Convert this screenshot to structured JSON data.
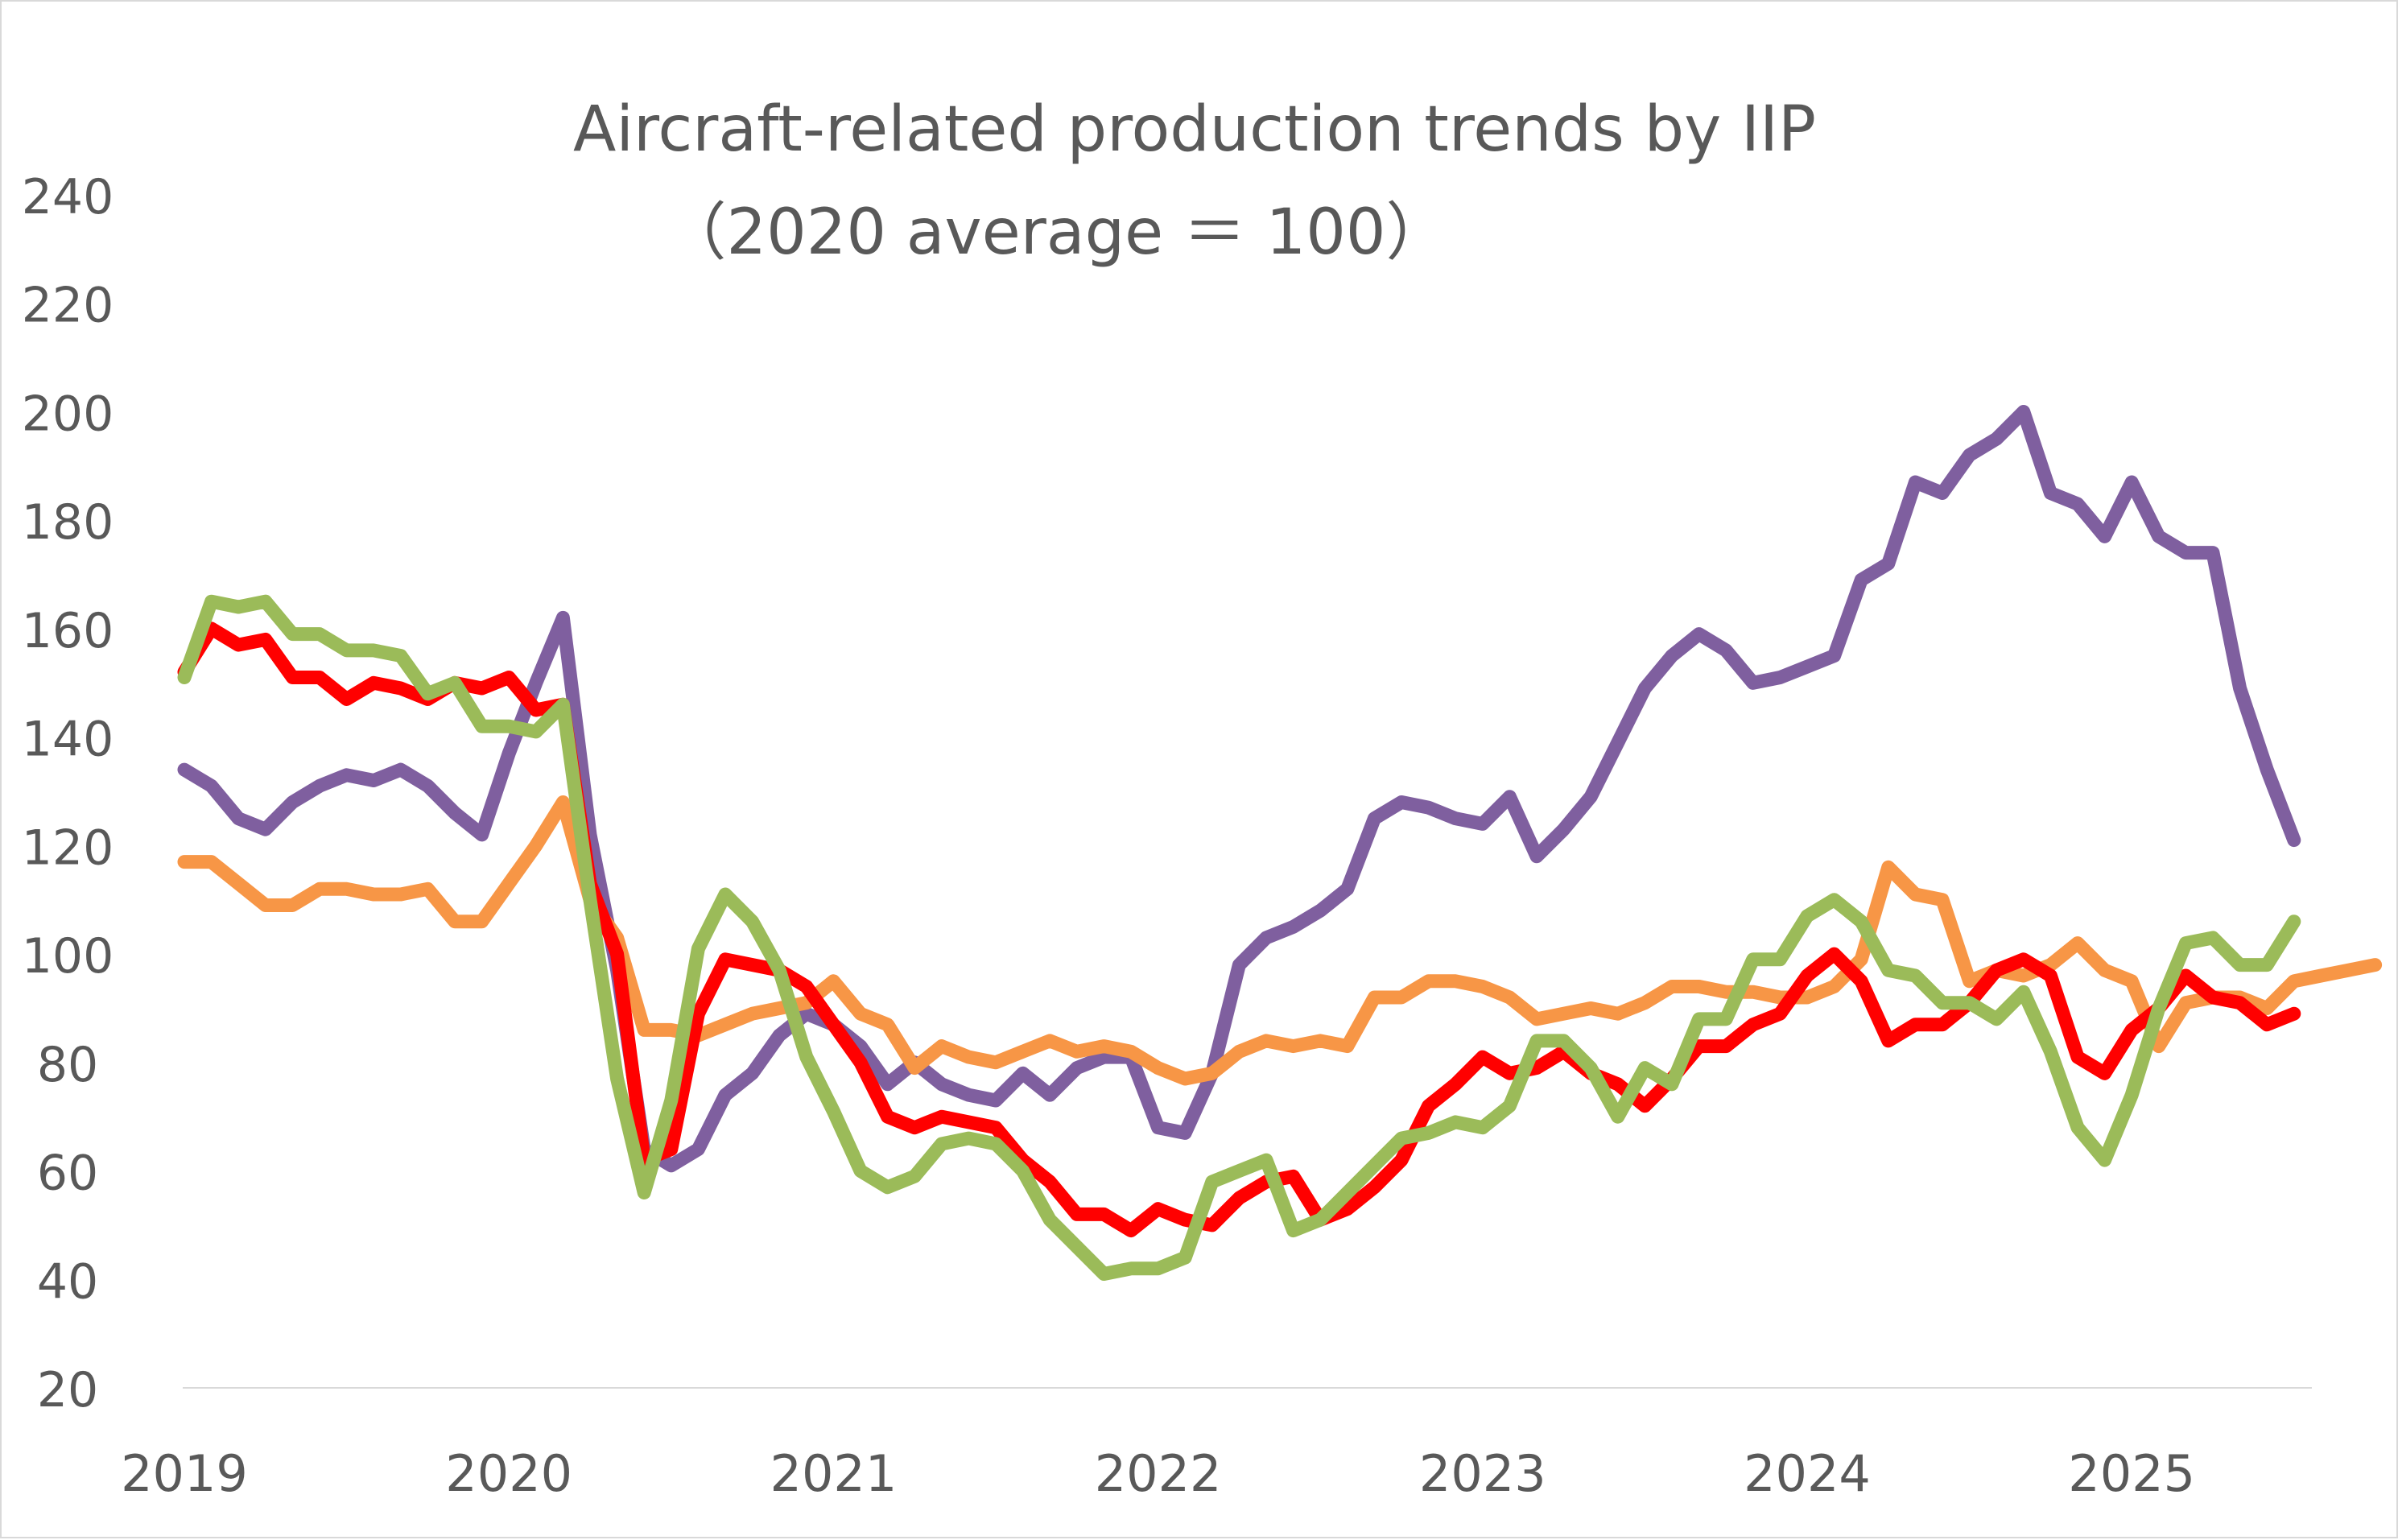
{
  "chart_data": {
    "type": "line",
    "title": "Aircraft-related production trends by IIP",
    "subtitle": "（2020 average ＝ 100）",
    "xlabel": "",
    "ylabel": "",
    "x_tick_labels": [
      "2019",
      "2020",
      "2021",
      "2022",
      "2023",
      "2024",
      "2025"
    ],
    "x_start": "2019-01",
    "y_tick_labels": [
      "20",
      "40",
      "60",
      "80",
      "100",
      "120",
      "140",
      "160",
      "180",
      "200",
      "220",
      "240"
    ],
    "ylim": [
      20,
      240
    ],
    "grid": false,
    "legend": "none",
    "series": [
      {
        "color": "#7f5f9f",
        "values": [
          134,
          131,
          125,
          123,
          128,
          131,
          133,
          132,
          134,
          131,
          126,
          122,
          137,
          150,
          162,
          122,
          97,
          64,
          61,
          64,
          74,
          78,
          85,
          89,
          87,
          83,
          76,
          80,
          76,
          74,
          73,
          78,
          74,
          79,
          81,
          81,
          68,
          67,
          78,
          98,
          103,
          105,
          108,
          112,
          125,
          128,
          127,
          125,
          124,
          129,
          118,
          123,
          129,
          139,
          149,
          155,
          159,
          156,
          150,
          151,
          153,
          155,
          169,
          172,
          187,
          185,
          192,
          195,
          200,
          185,
          183,
          177,
          187,
          177,
          174,
          174,
          149,
          134,
          121
        ]
      },
      {
        "color": "#f79646",
        "values": [
          117,
          117,
          113,
          109,
          109,
          112,
          112,
          111,
          111,
          112,
          106,
          106,
          113,
          120,
          128,
          110,
          103,
          86,
          86,
          85,
          87,
          89,
          90,
          91,
          95,
          89,
          87,
          79,
          83,
          81,
          80,
          82,
          84,
          82,
          83,
          82,
          79,
          77,
          78,
          82,
          84,
          83,
          84,
          83,
          92,
          92,
          95,
          95,
          94,
          92,
          88,
          89,
          90,
          89,
          91,
          94,
          94,
          93,
          93,
          92,
          92,
          94,
          99,
          116,
          111,
          110,
          95,
          97,
          96,
          98,
          102,
          97,
          95,
          83,
          91,
          92,
          92,
          90,
          95,
          96,
          97,
          98
        ]
      },
      {
        "color": "#ff0000",
        "values": [
          152,
          160,
          157,
          158,
          151,
          151,
          147,
          150,
          149,
          147,
          150,
          149,
          151,
          145,
          146,
          113,
          100,
          62,
          64,
          89,
          99,
          98,
          97,
          94,
          87,
          80,
          70,
          68,
          70,
          69,
          68,
          62,
          58,
          52,
          52,
          49,
          53,
          51,
          50,
          55,
          58,
          59,
          51,
          53,
          57,
          62,
          72,
          76,
          81,
          78,
          79,
          82,
          78,
          76,
          72,
          77,
          83,
          83,
          87,
          89,
          96,
          100,
          95,
          84,
          87,
          87,
          91,
          97,
          99,
          96,
          81,
          78,
          86,
          90,
          96,
          92,
          91,
          87,
          89
        ]
      },
      {
        "color": "#9bbb59",
        "values": [
          151,
          165,
          164,
          165,
          159,
          159,
          156,
          156,
          155,
          148,
          150,
          142,
          142,
          141,
          146,
          110,
          77,
          56,
          73,
          101,
          111,
          106,
          97,
          81,
          71,
          60,
          57,
          59,
          65,
          66,
          65,
          60,
          51,
          46,
          41,
          42,
          42,
          44,
          58,
          60,
          62,
          49,
          51,
          56,
          61,
          66,
          67,
          69,
          68,
          72,
          84,
          84,
          79,
          70,
          79,
          76,
          88,
          88,
          99,
          99,
          107,
          110,
          106,
          97,
          96,
          91,
          91,
          88,
          93,
          82,
          68,
          62,
          74,
          90,
          102,
          103,
          98,
          98,
          106
        ]
      }
    ]
  }
}
